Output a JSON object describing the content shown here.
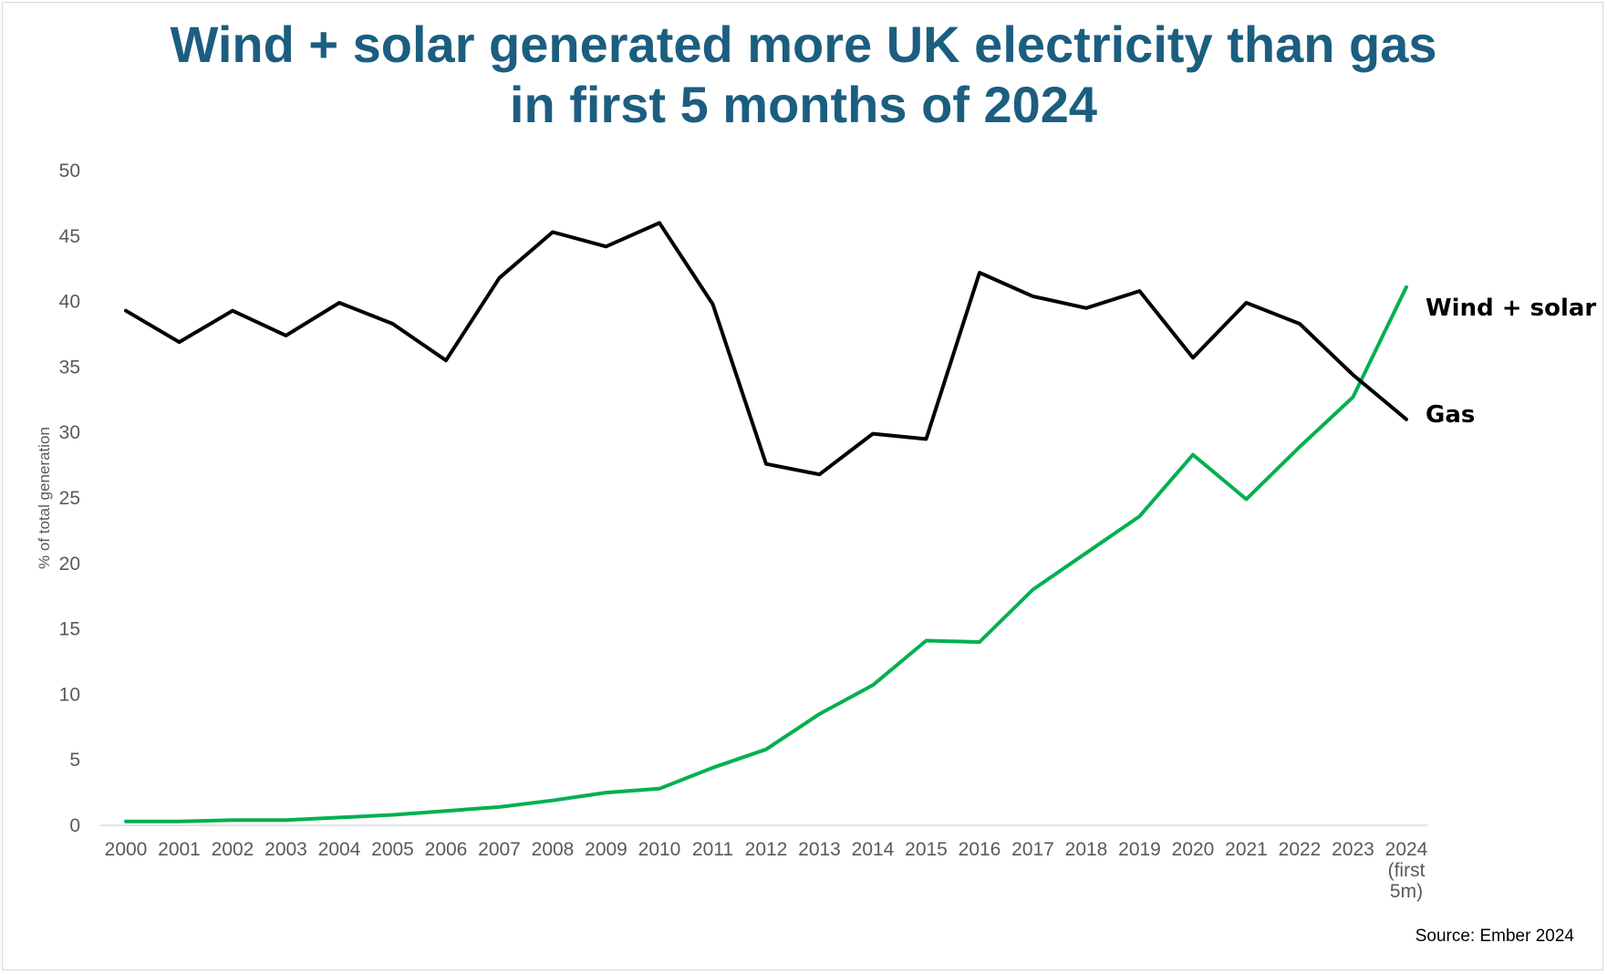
{
  "title": {
    "line1": "Wind + solar generated more UK electricity than gas",
    "line2": "in first 5 months of 2024"
  },
  "source": "Source: Ember 2024",
  "chart_data": {
    "type": "line",
    "title": "Wind + solar generated more UK electricity than gas in first 5 months of 2024",
    "xlabel": "",
    "ylabel": "% of total generation",
    "ylim": [
      0,
      50
    ],
    "yticks": [
      0,
      5,
      10,
      15,
      20,
      25,
      30,
      35,
      40,
      45,
      50
    ],
    "grid": false,
    "legend": "direct labels at line ends (right)",
    "categories": [
      "2000",
      "2001",
      "2002",
      "2003",
      "2004",
      "2005",
      "2006",
      "2007",
      "2008",
      "2009",
      "2010",
      "2011",
      "2012",
      "2013",
      "2014",
      "2015",
      "2016",
      "2017",
      "2018",
      "2019",
      "2020",
      "2021",
      "2022",
      "2023",
      "2024"
    ],
    "category_labels": [
      "2000",
      "2001",
      "2002",
      "2003",
      "2004",
      "2005",
      "2006",
      "2007",
      "2008",
      "2009",
      "2010",
      "2011",
      "2012",
      "2013",
      "2014",
      "2015",
      "2016",
      "2017",
      "2018",
      "2019",
      "2020",
      "2021",
      "2022",
      "2023",
      "2024\n(first\n5m)"
    ],
    "series": [
      {
        "name": "Gas",
        "color": "#000000",
        "values": [
          39.3,
          36.9,
          39.3,
          37.4,
          39.9,
          38.3,
          35.5,
          41.8,
          45.3,
          44.2,
          46.0,
          39.8,
          27.6,
          26.8,
          29.9,
          29.5,
          42.2,
          40.4,
          39.5,
          40.8,
          35.7,
          39.9,
          38.3,
          34.4,
          31.0
        ]
      },
      {
        "name": "Wind + solar",
        "color": "#00b050",
        "values": [
          0.3,
          0.3,
          0.4,
          0.4,
          0.6,
          0.8,
          1.1,
          1.4,
          1.9,
          2.5,
          2.8,
          4.4,
          5.8,
          8.5,
          10.7,
          14.1,
          14.0,
          18.0,
          20.8,
          23.6,
          28.3,
          24.9,
          28.9,
          32.7,
          41.1
        ]
      }
    ]
  }
}
